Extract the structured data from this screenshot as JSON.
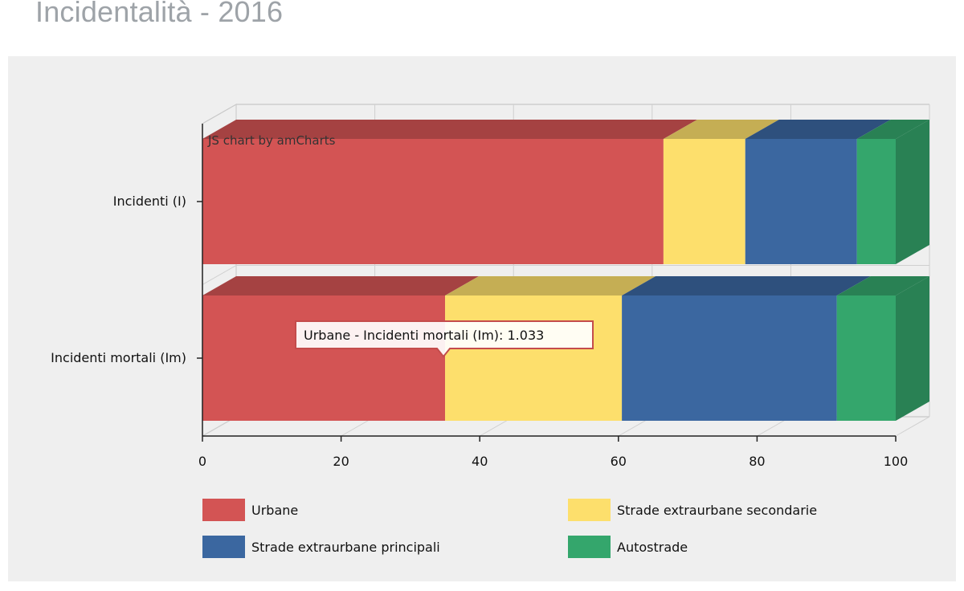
{
  "page": {
    "title": "Incidentalità - 2016"
  },
  "chart_data": {
    "type": "bar",
    "orientation": "horizontal",
    "stacked": "100%",
    "depth3d": true,
    "categories": [
      "Incidenti (I)",
      "Incidenti mortali (Im)"
    ],
    "series": [
      {
        "name": "Urbane",
        "color": "#d35454",
        "values": [
          66.5,
          35
        ]
      },
      {
        "name": "Strade extraurbane secondarie",
        "color": "#fddf6c",
        "values": [
          11.8,
          25.5
        ]
      },
      {
        "name": "Strade extraurbane principali",
        "color": "#3b67a0",
        "values": [
          16.1,
          31
        ]
      },
      {
        "name": "Autostrade",
        "color": "#34a66c",
        "values": [
          5.6,
          8.5
        ]
      }
    ],
    "xlim": [
      0,
      100
    ],
    "xticks": [
      "0",
      "20",
      "40",
      "60",
      "80",
      "100"
    ],
    "grid": true,
    "legend_position": "bottom",
    "credit": "JS chart by amCharts",
    "tooltip": {
      "text": "Urbane - Incidenti mortali (Im): 1.033",
      "series": "Urbane",
      "category": "Incidenti mortali (Im)"
    }
  }
}
